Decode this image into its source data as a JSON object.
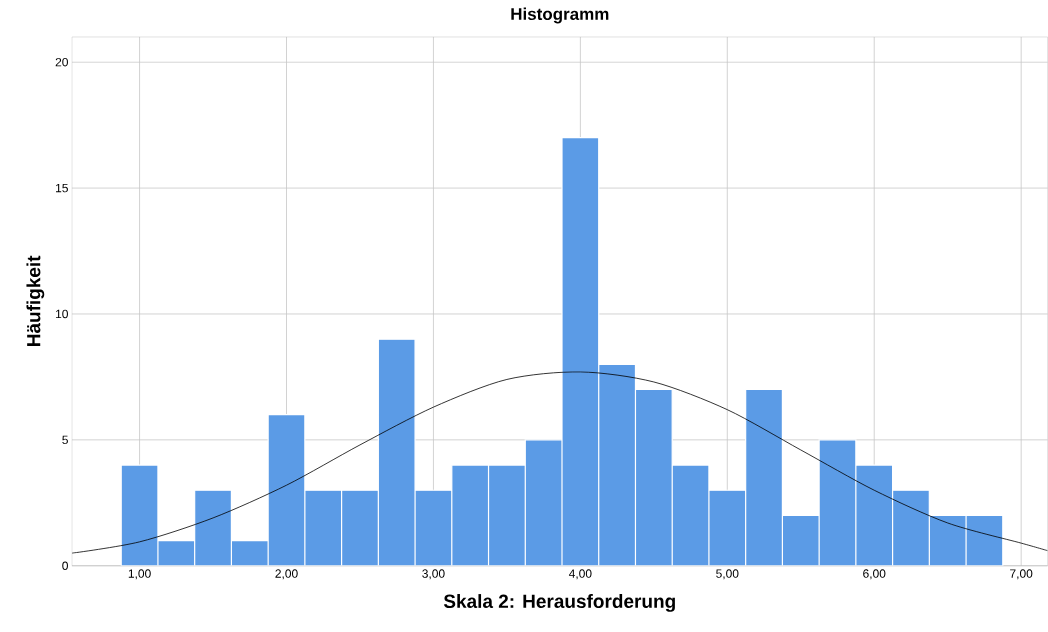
{
  "chart_data": {
    "type": "histogram",
    "title": "Histogramm",
    "xlabel": "Skala 2: Herausforderung",
    "ylabel": "Häufigkeit",
    "bins": [
      0.875,
      1.125,
      1.375,
      1.625,
      1.875,
      2.125,
      2.375,
      2.625,
      2.875,
      3.125,
      3.375,
      3.625,
      3.875,
      4.125,
      4.375,
      4.625,
      4.875,
      5.125,
      5.375,
      5.625,
      5.875,
      6.125,
      6.375,
      6.625,
      6.875
    ],
    "values": [
      4,
      1,
      3,
      1,
      6,
      3,
      3,
      9,
      3,
      4,
      4,
      5,
      17,
      8,
      7,
      4,
      3,
      7,
      2,
      5,
      4,
      3,
      2,
      2
    ],
    "color": "#5b9be6",
    "series": [
      {
        "type": "line",
        "color": "#000000",
        "x": [
          0.54,
          1.0,
          1.5,
          2.0,
          2.5,
          3.0,
          3.5,
          4.0,
          4.5,
          5.0,
          5.5,
          6.0,
          6.5,
          7.0,
          7.18
        ],
        "values": [
          0.5,
          0.95,
          1.9,
          3.2,
          4.8,
          6.3,
          7.4,
          7.7,
          7.3,
          6.2,
          4.6,
          3.0,
          1.7,
          0.9,
          0.6
        ]
      }
    ],
    "xlim": [
      0.54,
      7.18
    ],
    "ylim": [
      0,
      21
    ],
    "xticks": [
      {
        "value": 1,
        "label": "1,00"
      },
      {
        "value": 2,
        "label": "2,00"
      },
      {
        "value": 3,
        "label": "3,00"
      },
      {
        "value": 4,
        "label": "4,00"
      },
      {
        "value": 5,
        "label": "5,00"
      },
      {
        "value": 6,
        "label": "6,00"
      },
      {
        "value": 7,
        "label": "7,00"
      }
    ],
    "yticks": [
      0,
      5,
      10,
      15,
      20
    ],
    "grid": true
  }
}
